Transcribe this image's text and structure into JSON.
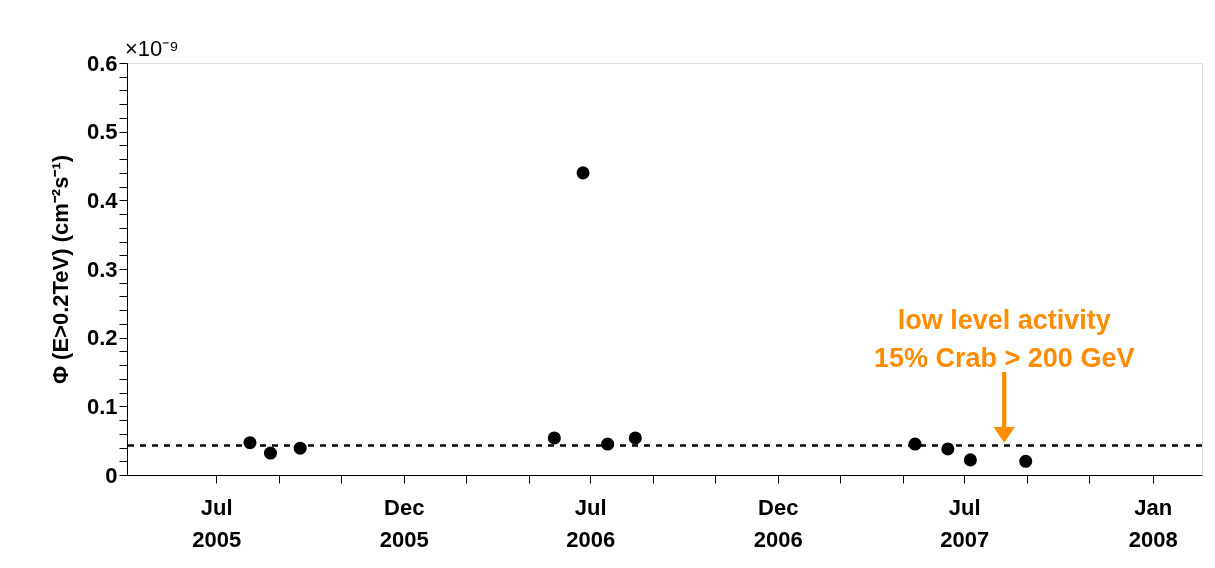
{
  "chart_data": {
    "type": "scatter",
    "ylabel": "Φ (E>0.2TeV) (cm⁻²s⁻¹)",
    "x": [
      "2005-08-03",
      "2005-08-23",
      "2005-09-21",
      "2006-05-27",
      "2006-06-24",
      "2006-07-18",
      "2006-08-14",
      "2007-05-14",
      "2007-06-15",
      "2007-07-07",
      "2007-08-30"
    ],
    "series": [
      {
        "color": "#000000",
        "values": [
          0.047,
          0.032,
          0.039,
          0.054,
          0.44,
          0.045,
          0.054,
          0.045,
          0.038,
          0.022,
          0.02
        ]
      }
    ],
    "marker": "circle",
    "xlim": [
      "2005-04-05",
      "2008-02-18"
    ],
    "xticks": [
      {
        "value": "2005-07-01",
        "label": "Jul 2005"
      },
      {
        "value": "2005-08-31",
        "label": null
      },
      {
        "value": "2005-10-31",
        "label": null
      },
      {
        "value": "2005-12-31",
        "label": "Dec 2005"
      },
      {
        "value": "2006-03-02",
        "label": null
      },
      {
        "value": "2006-05-02",
        "label": null
      },
      {
        "value": "2006-07-01",
        "label": "Jul 2006"
      },
      {
        "value": "2006-08-31",
        "label": null
      },
      {
        "value": "2006-10-31",
        "label": null
      },
      {
        "value": "2006-12-31",
        "label": "Dec 2006"
      },
      {
        "value": "2007-03-02",
        "label": null
      },
      {
        "value": "2007-05-02",
        "label": null
      },
      {
        "value": "2007-07-01",
        "label": "Jul 2007"
      },
      {
        "value": "2007-08-31",
        "label": null
      },
      {
        "value": "2007-10-31",
        "label": null
      },
      {
        "value": "2008-01-01",
        "label": "Jan 2008"
      }
    ],
    "ylim": [
      0,
      0.6
    ],
    "yticks": [
      0,
      {
        "value": 0.02,
        "label": null
      },
      {
        "value": 0.04,
        "label": null
      },
      {
        "value": 0.06,
        "label": null
      },
      {
        "value": 0.08,
        "label": null
      },
      0.1,
      {
        "value": 0.12,
        "label": null
      },
      {
        "value": 0.14,
        "label": null
      },
      {
        "value": 0.16,
        "label": null
      },
      {
        "value": 0.18,
        "label": null
      },
      0.2,
      {
        "value": 0.22,
        "label": null
      },
      {
        "value": 0.24,
        "label": null
      },
      {
        "value": 0.26,
        "label": null
      },
      {
        "value": 0.28,
        "label": null
      },
      0.3,
      {
        "value": 0.32,
        "label": null
      },
      {
        "value": 0.34,
        "label": null
      },
      {
        "value": 0.36,
        "label": null
      },
      {
        "value": 0.38,
        "label": null
      },
      0.4,
      {
        "value": 0.42,
        "label": null
      },
      {
        "value": 0.44,
        "label": null
      },
      {
        "value": 0.46,
        "label": null
      },
      {
        "value": 0.48,
        "label": null
      },
      0.5,
      {
        "value": 0.52,
        "label": null
      },
      {
        "value": 0.54,
        "label": null
      },
      {
        "value": 0.56,
        "label": null
      },
      {
        "value": 0.58,
        "label": null
      },
      0.6
    ],
    "ref_lines": [
      {
        "axis": "y",
        "value": 0.043,
        "color": "#000000",
        "line_style": "dashed"
      }
    ],
    "annotations": [
      "×10⁻⁹",
      {
        "text": "low level activity\n15% Crab > 200 GeV",
        "x": "2007-08-09",
        "y": 0.043
      }
    ],
    "grid": false
  }
}
